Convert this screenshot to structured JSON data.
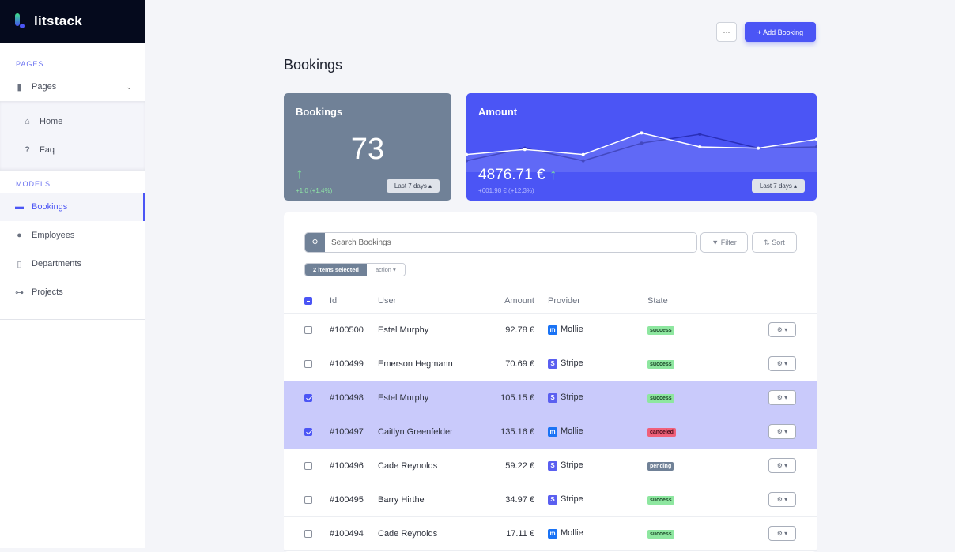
{
  "brand": {
    "name": "litstack"
  },
  "sidebar": {
    "pages_label": "PAGES",
    "pages_group": {
      "label": "Pages",
      "icon": "file-icon"
    },
    "pages_items": [
      {
        "label": "Home",
        "icon": "home-icon"
      },
      {
        "label": "Faq",
        "icon": "question-icon"
      }
    ],
    "models_label": "MODELS",
    "models_items": [
      {
        "label": "Bookings",
        "icon": "money-bill-icon",
        "active": true
      },
      {
        "label": "Employees",
        "icon": "users-icon"
      },
      {
        "label": "Departments",
        "icon": "building-icon"
      },
      {
        "label": "Projects",
        "icon": "project-diagram-icon"
      }
    ]
  },
  "header": {
    "more_label": "···",
    "add_label": "+ Add Booking",
    "title": "Bookings"
  },
  "cards": {
    "bookings": {
      "title": "Bookings",
      "value": "73",
      "delta": "+1.0 (+1.4%)",
      "range": "Last 7 days ▴"
    },
    "amount": {
      "title": "Amount",
      "value": "4876.71 €",
      "delta": "+601.98 € (+12.3%)",
      "range": "Last 7 days ▴"
    }
  },
  "chart_data": {
    "type": "line",
    "series": [
      {
        "values": [
          44,
          48,
          44,
          61,
          50,
          49,
          56
        ],
        "color": "#ffffff"
      },
      {
        "values": [
          39,
          49,
          39,
          53,
          60,
          49,
          50
        ],
        "color": "#2a2fb8"
      }
    ]
  },
  "toolbar": {
    "search_placeholder": "Search Bookings",
    "filter_label": "Filter",
    "sort_label": "Sort",
    "selected_label": "2 items selected",
    "action_label": "action ▾"
  },
  "table": {
    "headers": {
      "id": "Id",
      "user": "User",
      "amount": "Amount",
      "provider": "Provider",
      "state": "State"
    },
    "rows": [
      {
        "id": "#100500",
        "user": "Estel Murphy",
        "amount": "92.78 €",
        "provider": "Mollie",
        "state": "success",
        "checked": false
      },
      {
        "id": "#100499",
        "user": "Emerson Hegmann",
        "amount": "70.69 €",
        "provider": "Stripe",
        "state": "success",
        "checked": false
      },
      {
        "id": "#100498",
        "user": "Estel Murphy",
        "amount": "105.15 €",
        "provider": "Stripe",
        "state": "success",
        "checked": true
      },
      {
        "id": "#100497",
        "user": "Caitlyn Greenfelder",
        "amount": "135.16 €",
        "provider": "Mollie",
        "state": "canceled",
        "checked": true
      },
      {
        "id": "#100496",
        "user": "Cade Reynolds",
        "amount": "59.22 €",
        "provider": "Stripe",
        "state": "pending",
        "checked": false
      },
      {
        "id": "#100495",
        "user": "Barry Hirthe",
        "amount": "34.97 €",
        "provider": "Stripe",
        "state": "success",
        "checked": false
      },
      {
        "id": "#100494",
        "user": "Cade Reynolds",
        "amount": "17.11 €",
        "provider": "Mollie",
        "state": "success",
        "checked": false
      }
    ]
  },
  "colors": {
    "accent": "#4b55f5",
    "success": "#8ee7a0",
    "canceled": "#f0607a",
    "pending": "#708197",
    "mollie": "#1a73f5",
    "stripe": "#5a5ff0"
  }
}
